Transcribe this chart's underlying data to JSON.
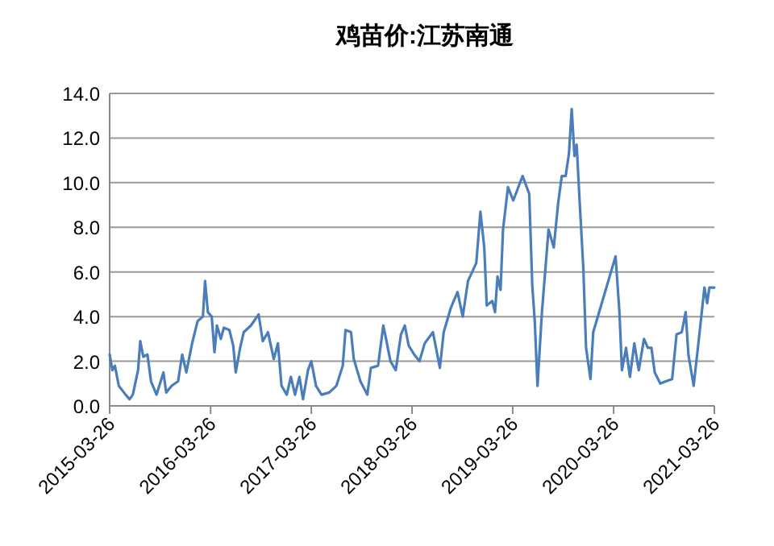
{
  "chart_data": {
    "type": "line",
    "title": "鸡苗价:江苏南通",
    "x": [
      "2015-03-26",
      "2015-04-05",
      "2015-04-14",
      "2015-04-28",
      "2015-05-23",
      "2015-06-06",
      "2015-06-18",
      "2015-07-07",
      "2015-07-15",
      "2015-07-26",
      "2015-08-10",
      "2015-08-23",
      "2015-09-12",
      "2015-10-07",
      "2015-10-17",
      "2015-11-06",
      "2015-11-29",
      "2015-12-14",
      "2015-12-29",
      "2016-01-19",
      "2016-02-08",
      "2016-02-27",
      "2016-03-06",
      "2016-03-16",
      "2016-03-30",
      "2016-04-09",
      "2016-04-18",
      "2016-05-02",
      "2016-05-13",
      "2016-06-02",
      "2016-06-16",
      "2016-06-25",
      "2016-07-11",
      "2016-07-24",
      "2016-08-19",
      "2016-09-16",
      "2016-10-01",
      "2016-10-20",
      "2016-11-10",
      "2016-11-25",
      "2016-12-08",
      "2016-12-27",
      "2017-01-11",
      "2017-01-26",
      "2017-02-11",
      "2017-02-24",
      "2017-03-14",
      "2017-03-26",
      "2017-04-12",
      "2017-05-02",
      "2017-05-30",
      "2017-06-25",
      "2017-07-18",
      "2017-07-28",
      "2017-08-17",
      "2017-08-27",
      "2017-09-20",
      "2017-10-15",
      "2017-10-28",
      "2017-11-23",
      "2017-12-12",
      "2017-12-22",
      "2018-01-07",
      "2018-01-26",
      "2018-02-14",
      "2018-02-28",
      "2018-03-14",
      "2018-04-03",
      "2018-04-22",
      "2018-05-11",
      "2018-06-10",
      "2018-07-05",
      "2018-07-19",
      "2018-08-14",
      "2018-09-07",
      "2018-09-26",
      "2018-10-15",
      "2018-11-14",
      "2018-11-29",
      "2018-12-13",
      "2018-12-22",
      "2019-01-11",
      "2019-01-21",
      "2019-01-30",
      "2019-02-10",
      "2019-02-19",
      "2019-03-09",
      "2019-03-28",
      "2019-05-01",
      "2019-05-25",
      "2019-06-05",
      "2019-06-14",
      "2019-06-24",
      "2019-07-10",
      "2019-08-03",
      "2019-08-22",
      "2019-09-07",
      "2019-09-20",
      "2019-10-04",
      "2019-10-16",
      "2019-10-26",
      "2019-11-05",
      "2019-11-13",
      "2019-11-24",
      "2019-12-07",
      "2019-12-17",
      "2020-01-02",
      "2020-01-12",
      "2020-04-02",
      "2020-04-16",
      "2020-04-25",
      "2020-05-10",
      "2020-05-24",
      "2020-06-09",
      "2020-06-25",
      "2020-07-14",
      "2020-07-28",
      "2020-08-10",
      "2020-08-22",
      "2020-09-11",
      "2020-10-01",
      "2020-10-24",
      "2020-11-09",
      "2020-11-28",
      "2020-12-12",
      "2020-12-22",
      "2021-01-10",
      "2021-01-29",
      "2021-02-18",
      "2021-02-28",
      "2021-03-08",
      "2021-03-26"
    ],
    "series": [
      {
        "color": "#4a7ebb",
        "values": [
          2.3,
          1.6,
          1.8,
          0.9,
          0.5,
          0.3,
          0.5,
          1.6,
          2.9,
          2.2,
          2.3,
          1.1,
          0.5,
          1.5,
          0.6,
          0.9,
          1.1,
          2.3,
          1.5,
          2.8,
          3.8,
          4.0,
          5.6,
          4.2,
          4.0,
          2.4,
          3.6,
          3.0,
          3.5,
          3.4,
          2.7,
          1.5,
          2.6,
          3.3,
          3.6,
          4.1,
          2.9,
          3.3,
          2.1,
          2.8,
          0.9,
          0.5,
          1.3,
          0.5,
          1.3,
          0.3,
          1.6,
          2.0,
          0.9,
          0.5,
          0.6,
          0.9,
          1.8,
          3.4,
          3.3,
          2.1,
          1.1,
          0.5,
          1.7,
          1.8,
          3.6,
          3.0,
          2.0,
          1.6,
          3.2,
          3.6,
          2.7,
          2.3,
          2.0,
          2.8,
          3.3,
          1.7,
          3.3,
          4.4,
          5.1,
          4.0,
          5.6,
          6.4,
          8.7,
          7.1,
          4.5,
          4.7,
          4.2,
          5.8,
          5.2,
          7.9,
          9.8,
          9.2,
          10.3,
          9.5,
          5.4,
          3.8,
          0.9,
          4.2,
          7.9,
          7.1,
          9.1,
          10.3,
          10.3,
          11.3,
          13.3,
          11.2,
          11.7,
          9.1,
          6.2,
          2.6,
          1.2,
          3.3,
          6.7,
          4.2,
          1.6,
          2.6,
          1.3,
          2.8,
          1.6,
          3.0,
          2.6,
          2.6,
          1.5,
          1.0,
          1.1,
          1.2,
          3.2,
          3.3,
          4.2,
          2.3,
          0.9,
          3.0,
          5.3,
          4.6,
          5.3,
          5.3
        ]
      }
    ],
    "xlim": [
      "2015-03-26",
      "2021-03-26"
    ],
    "xticks": [
      "2015-03-26",
      "2016-03-26",
      "2017-03-26",
      "2018-03-26",
      "2019-03-26",
      "2020-03-26",
      "2021-03-26"
    ],
    "ylim": [
      0,
      14
    ],
    "yticks": [
      {
        "value": 0,
        "label": "0.0"
      },
      {
        "value": 2,
        "label": "2.0"
      },
      {
        "value": 4,
        "label": "4.0"
      },
      {
        "value": 6,
        "label": "6.0"
      },
      {
        "value": 8,
        "label": "8.0"
      },
      {
        "value": 10,
        "label": "10.0"
      },
      {
        "value": 12,
        "label": "12.0"
      },
      {
        "value": 14,
        "label": "14.0"
      }
    ],
    "grid": "y"
  }
}
